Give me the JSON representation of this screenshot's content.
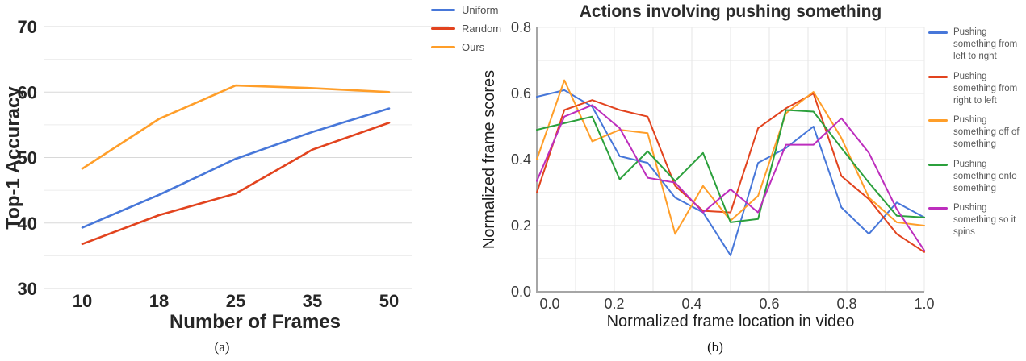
{
  "figure": {
    "caption_a": "(a)",
    "caption_b": "(b)"
  },
  "chart_data": [
    {
      "id": "a",
      "type": "line",
      "title": "",
      "xlabel": "Number of Frames",
      "ylabel": "Top-1 Accuracy",
      "categories": [
        "10",
        "18",
        "25",
        "35",
        "50"
      ],
      "y_ticks": [
        30,
        40,
        50,
        60,
        70
      ],
      "ylim": [
        30,
        70
      ],
      "grid_step": 5,
      "grid": "horizontal-only",
      "legend_position": "outside-top-right",
      "series": [
        {
          "name": "Uniform",
          "color": "#4777D9",
          "values": [
            39.3,
            44.3,
            49.8,
            53.9,
            57.5
          ]
        },
        {
          "name": "Random",
          "color": "#E2431E",
          "values": [
            36.8,
            41.2,
            44.5,
            51.2,
            55.3
          ]
        },
        {
          "name": "Ours",
          "color": "#FF9E29",
          "values": [
            48.3,
            55.9,
            61.0,
            60.6,
            60.0
          ]
        }
      ]
    },
    {
      "id": "b",
      "type": "line",
      "title": "Actions involving pushing something",
      "xlabel": "Normalized frame location in video",
      "ylabel": "Normalized frame scores",
      "x": [
        0,
        0.071,
        0.143,
        0.214,
        0.286,
        0.357,
        0.429,
        0.5,
        0.571,
        0.643,
        0.714,
        0.786,
        0.857,
        0.929,
        1.0
      ],
      "x_tick_labels": [
        "0.0",
        "0.2",
        "0.4",
        "0.6",
        "0.8",
        "1.0"
      ],
      "y_tick_labels": [
        "0.0",
        "0.2",
        "0.4",
        "0.6",
        "0.8"
      ],
      "xlim": [
        0,
        1
      ],
      "ylim": [
        0,
        0.8
      ],
      "grid_step": 0.1,
      "grid": "both",
      "legend_position": "outside-right",
      "series": [
        {
          "name": "Pushing something from left to right",
          "color": "#4777D9",
          "values": [
            0.59,
            0.61,
            0.56,
            0.41,
            0.39,
            0.285,
            0.24,
            0.11,
            0.39,
            0.435,
            0.5,
            0.255,
            0.175,
            0.27,
            0.225
          ]
        },
        {
          "name": "Pushing something from right to left",
          "color": "#E2431E",
          "values": [
            0.3,
            0.55,
            0.58,
            0.55,
            0.53,
            0.32,
            0.245,
            0.24,
            0.495,
            0.555,
            0.6,
            0.35,
            0.28,
            0.175,
            0.12
          ]
        },
        {
          "name": "Pushing something off of something",
          "color": "#FF9E29",
          "values": [
            0.4,
            0.64,
            0.455,
            0.49,
            0.48,
            0.175,
            0.32,
            0.215,
            0.29,
            0.54,
            0.605,
            0.465,
            0.285,
            0.21,
            0.2
          ]
        },
        {
          "name": "Pushing something onto something",
          "color": "#2BA03C",
          "values": [
            0.49,
            0.51,
            0.53,
            0.34,
            0.425,
            0.335,
            0.42,
            0.21,
            0.22,
            0.55,
            0.545,
            0.435,
            0.33,
            0.23,
            0.225
          ]
        },
        {
          "name": "Pushing something so it spins",
          "color": "#BD2EBD",
          "values": [
            0.335,
            0.53,
            0.565,
            0.495,
            0.345,
            0.33,
            0.24,
            0.31,
            0.24,
            0.445,
            0.445,
            0.525,
            0.42,
            0.25,
            0.125
          ]
        }
      ]
    }
  ]
}
